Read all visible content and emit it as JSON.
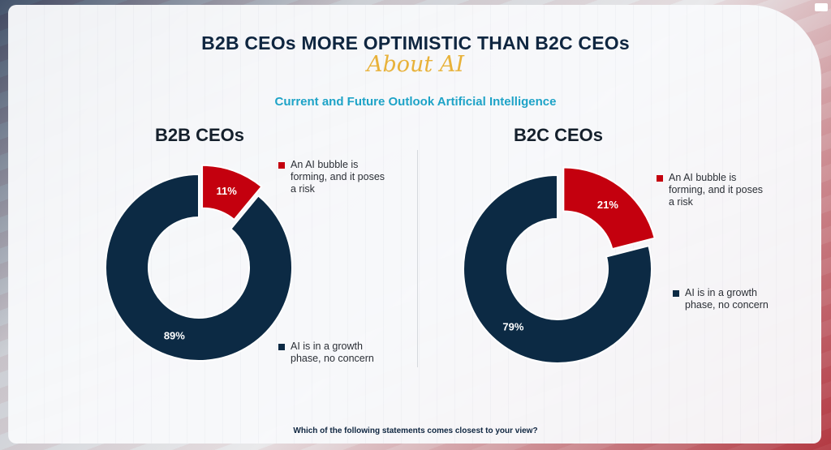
{
  "title": "B2B CEOs MORE OPTIMISTIC THAN B2C CEOs",
  "subtitle": "About AI",
  "section_heading": "Current and Future Outlook Artificial Intelligence",
  "footer_question": "Which of the following statements comes closest to your view?",
  "colors": {
    "bubble": "#c4000e",
    "growth": "#0c2a44",
    "accent_gold": "#e8b23a",
    "accent_cyan": "#1ea3c7"
  },
  "chart_data": [
    {
      "type": "pie",
      "variant": "donut",
      "title": "B2B CEOs",
      "series": [
        {
          "name": "An AI bubble is forming, and it poses a risk",
          "value": 11,
          "label": "11%"
        },
        {
          "name": "AI is in a growth phase, no concern",
          "value": 89,
          "label": "89%"
        }
      ]
    },
    {
      "type": "pie",
      "variant": "donut",
      "title": "B2C CEOs",
      "series": [
        {
          "name": "An AI bubble is forming, and it poses a risk",
          "value": 21,
          "label": "21%"
        },
        {
          "name": "AI is in a growth phase, no concern",
          "value": 79,
          "label": "79%"
        }
      ]
    }
  ]
}
